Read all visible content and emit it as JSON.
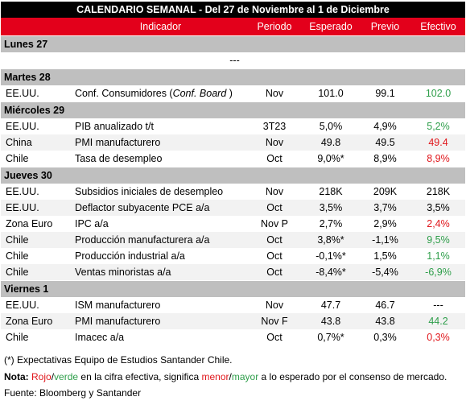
{
  "title": "CALENDARIO SEMANAL - Del 27 de Noviembre al 1 de Diciembre",
  "header": [
    "Indicador",
    "Periodo",
    "Esperado",
    "Previo",
    "Efectivo"
  ],
  "days": [
    {
      "label": "Lunes 27",
      "rows": [
        {
          "placeholder": "---"
        }
      ]
    },
    {
      "label": "Martes 28",
      "rows": [
        {
          "country": "EE.UU.",
          "indicator": [
            {
              "text": "Conf. Consumidores ("
            },
            {
              "text": "Conf. Board",
              "italic": true
            },
            {
              "text": " )"
            }
          ],
          "period": "Nov",
          "expected": "101.0",
          "previous": "99.1",
          "actual": "102.0",
          "color": "#2e9e4a"
        }
      ]
    },
    {
      "label": "Miércoles 29",
      "rows": [
        {
          "country": "EE.UU.",
          "indicator": [
            {
              "text": "PIB anualizado t/t"
            }
          ],
          "period": "3T23",
          "expected": "5,0%",
          "previous": "4,9%",
          "actual": "5,2%",
          "color": "#2e9e4a"
        },
        {
          "country": "China",
          "indicator": [
            {
              "text": "PMI manufacturero"
            }
          ],
          "period": "Nov",
          "expected": "49.8",
          "previous": "49.5",
          "actual": "49.4",
          "color": "#e0161b"
        },
        {
          "country": "Chile",
          "indicator": [
            {
              "text": "Tasa de desempleo"
            }
          ],
          "period": "Oct",
          "expected": "9,0%*",
          "previous": "8,9%",
          "actual": "8,9%",
          "color": "#e0161b"
        }
      ]
    },
    {
      "label": "Jueves 30",
      "rows": [
        {
          "country": "EE.UU.",
          "indicator": [
            {
              "text": "Subsidios iniciales de desempleo"
            }
          ],
          "period": "Nov",
          "expected": "218K",
          "previous": "209K",
          "actual": "218K",
          "color": "#000000"
        },
        {
          "country": "EE.UU.",
          "indicator": [
            {
              "text": "Deflactor subyacente PCE a/a"
            }
          ],
          "period": "Oct",
          "expected": "3,5%",
          "previous": "3,7%",
          "actual": "3,5%",
          "color": "#000000"
        },
        {
          "country": "Zona Euro",
          "indicator": [
            {
              "text": "IPC a/a"
            }
          ],
          "period": "Nov P",
          "expected": "2,7%",
          "previous": "2,9%",
          "actual": "2,4%",
          "color": "#e0161b"
        },
        {
          "country": "Chile",
          "indicator": [
            {
              "text": "Producción manufacturera a/a"
            }
          ],
          "period": "Oct",
          "expected": "3,8%*",
          "previous": "-1,1%",
          "actual": "9,5%",
          "color": "#2e9e4a"
        },
        {
          "country": "Chile",
          "indicator": [
            {
              "text": "Producción industrial a/a"
            }
          ],
          "period": "Oct",
          "expected": "-0,1%*",
          "previous": "1,5%",
          "actual": "1,1%",
          "color": "#2e9e4a"
        },
        {
          "country": "Chile",
          "indicator": [
            {
              "text": "Ventas minoristas a/a"
            }
          ],
          "period": "Oct",
          "expected": "-8,4%*",
          "previous": "-5,4%",
          "actual": "-6,9%",
          "color": "#2e9e4a"
        }
      ]
    },
    {
      "label": "Viernes 1",
      "rows": [
        {
          "country": "EE.UU.",
          "indicator": [
            {
              "text": "ISM manufacturero"
            }
          ],
          "period": "Nov",
          "expected": "47.7",
          "previous": "46.7",
          "actual": "---",
          "color": "#000000"
        },
        {
          "country": "Zona Euro",
          "indicator": [
            {
              "text": "PMI manufacturero"
            }
          ],
          "period": "Nov F",
          "expected": "43.8",
          "previous": "43.8",
          "actual": "44.2",
          "color": "#2e9e4a"
        },
        {
          "country": "Chile",
          "indicator": [
            {
              "text": "Imacec a/a"
            }
          ],
          "period": "Oct",
          "expected": "0,7%*",
          "previous": "0,3%",
          "actual": "0,3%",
          "color": "#e0161b"
        }
      ]
    }
  ],
  "footnote": "(*) Expectativas Equipo de Estudios Santander Chile.",
  "note": [
    {
      "text": "Nota:",
      "bold": true
    },
    {
      "text": " "
    },
    {
      "text": "Rojo",
      "color": "#e0161b"
    },
    {
      "text": "/"
    },
    {
      "text": "verde",
      "color": "#2e9e4a"
    },
    {
      "text": " en la cifra efectiva, significa "
    },
    {
      "text": "menor",
      "color": "#e0161b"
    },
    {
      "text": "/"
    },
    {
      "text": "mayor",
      "color": "#2e9e4a"
    },
    {
      "text": " a lo esperado por el consenso de mercado."
    }
  ],
  "source": "Fuente: Bloomberg y Santander"
}
